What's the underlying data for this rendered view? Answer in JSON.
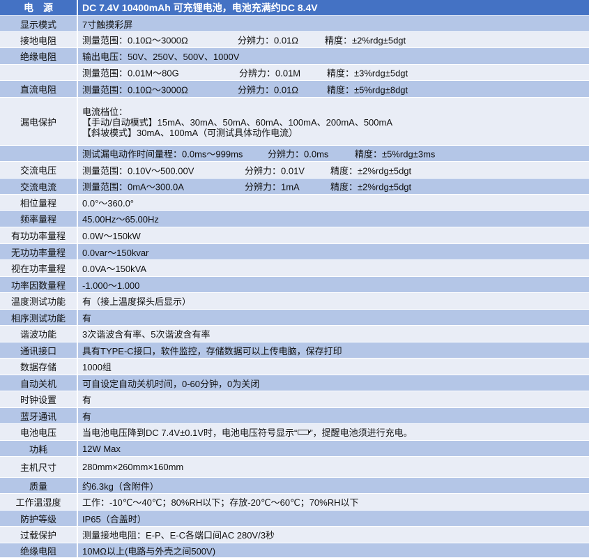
{
  "header": {
    "label": "电　源",
    "value": "DC 7.4V 10400mAh 可充锂电池，电池充满约DC 8.4V"
  },
  "rows": [
    {
      "label": "显示模式",
      "value": "7寸触摸彩屏"
    },
    {
      "label": "接地电阻",
      "range": "测量范围：0.10Ω～3000Ω",
      "resolution": "分辨力：0.01Ω",
      "accuracy": "精度：±2%rdg±5dgt"
    },
    {
      "label": "绝缘电阻",
      "value": "输出电压：50V、250V、500V、1000V"
    },
    {
      "label": "",
      "range": "测量范围：0.01M～80G",
      "resolution": "分辨力：0.01M",
      "accuracy": "精度：±3%rdg±5dgt"
    },
    {
      "label": "直流电阻",
      "range": "测量范围：0.10Ω～3000Ω",
      "resolution": "分辨力：0.01Ω",
      "accuracy": "精度：±5%rdg±8dgt"
    },
    {
      "label": "漏电保护",
      "line1": "电流档位：",
      "line2": "【手动/自动模式】15mA、30mA、50mA、60mA、100mA、200mA、500mA",
      "line3": "【斜坡模式】30mA、100mA（可测试具体动作电流）"
    },
    {
      "label": "",
      "range": "测试漏电动作时间量程：0.0ms～999ms",
      "resolution": "分辨力：0.0ms",
      "accuracy": "精度：±5%rdg±3ms"
    },
    {
      "label": "交流电压",
      "range": "测量范围：0.10V～500.00V",
      "resolution": "分辨力：0.01V",
      "accuracy": "精度：±2%rdg±5dgt"
    },
    {
      "label": "交流电流",
      "range": "测量范围：0mA～300.0A",
      "resolution": "分辨力：1mA",
      "accuracy": "精度：±2%rdg±5dgt"
    },
    {
      "label": "相位量程",
      "value": "0.0°～360.0°"
    },
    {
      "label": "频率量程",
      "value": "45.00Hz～65.00Hz"
    },
    {
      "label": "有功功率量程",
      "value": "0.0W～150kW"
    },
    {
      "label": "无功功率量程",
      "value": "0.0var～150kvar"
    },
    {
      "label": "视在功率量程",
      "value": "0.0VA～150kVA"
    },
    {
      "label": "功率因数量程",
      "value": "-1.000～1.000"
    },
    {
      "label": "温度测试功能",
      "value": "有（接上温度探头后显示）"
    },
    {
      "label": "相序测试功能",
      "value": "有"
    },
    {
      "label": "谐波功能",
      "value": "3次谐波含有率、5次谐波含有率"
    },
    {
      "label": "通讯接口",
      "value": "具有TYPE-C接口，软件监控，存储数据可以上传电脑，保存打印"
    },
    {
      "label": "数据存储",
      "value": "1000组"
    },
    {
      "label": "自动关机",
      "value": "可自设定自动关机时间，0-60分钟，0为关闭"
    },
    {
      "label": "时钟设置",
      "value": "有"
    },
    {
      "label": "蓝牙通讯",
      "value": "有"
    },
    {
      "label": "电池电压",
      "value_a": "当电池电压降到DC 7.4V±0.1V时，电池电压符号显示“",
      "value_b": "”，提醒电池须进行充电。",
      "icon": "battery-low-icon"
    },
    {
      "label": "功耗",
      "value": "12W Max"
    },
    {
      "label": "主机尺寸",
      "value": "280mm×260mm×160mm"
    },
    {
      "label": "质量",
      "value": "约6.3kg（含附件）"
    },
    {
      "label": "工作温湿度",
      "value": "工作：-10℃～40℃；80%RH以下；存放-20℃～60℃；70%RH以下"
    },
    {
      "label": "防护等级",
      "value": "IP65（合盖时）"
    },
    {
      "label": "过载保护",
      "value": "测量接地电阻：E-P、E-C各端口间AC 280V/3秒"
    },
    {
      "label": "绝缘电阻",
      "value": "10MΩ以上(电路与外壳之间500V)"
    }
  ],
  "colors": {
    "header": "#4472C4",
    "dark_row": "#B4C6E7",
    "light_row": "#E9EDF6"
  }
}
